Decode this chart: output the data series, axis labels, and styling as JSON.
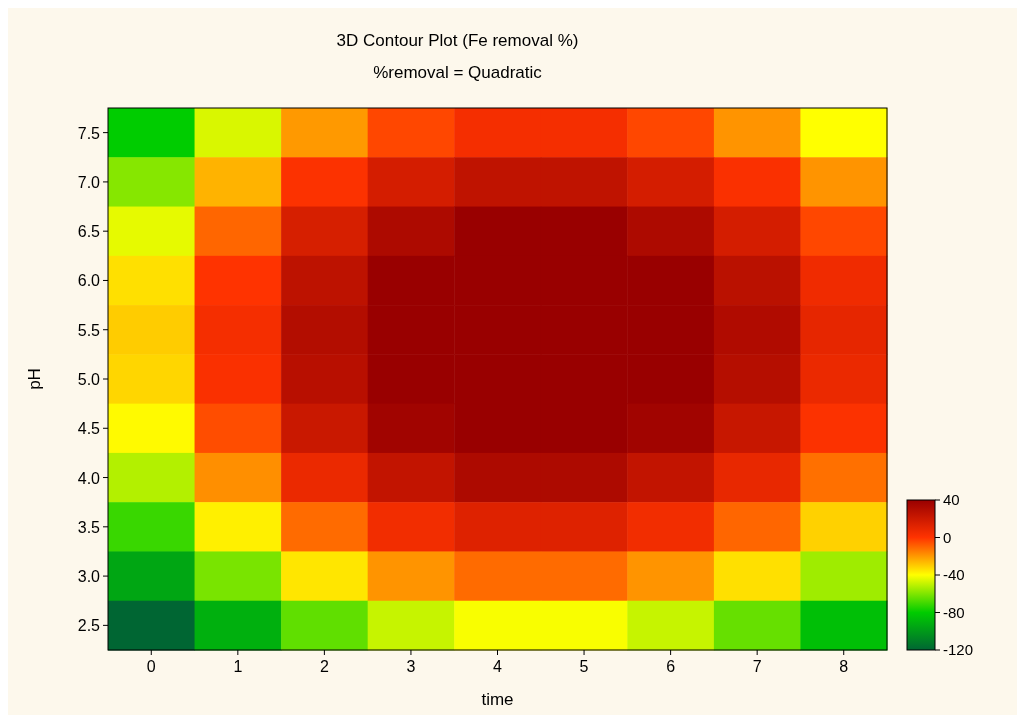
{
  "chart_data": {
    "type": "heatmap",
    "title": "3D Contour Plot (Fe removal %)",
    "subtitle": "%removal = Quadratic",
    "xlabel": "time",
    "ylabel": "pH",
    "categories": [
      "0",
      "1",
      "2",
      "3",
      "4",
      "5",
      "6",
      "7",
      "8"
    ],
    "y_categories": [
      "7.5",
      "7.0",
      "6.5",
      "6.0",
      "5.5",
      "5.0",
      "4.5",
      "4.0",
      "3.5",
      "3.0",
      "2.5"
    ],
    "cells": [
      [
        -80,
        -46,
        -20,
        -4,
        4,
        4,
        -4,
        -19,
        -40
      ],
      [
        -59,
        -25,
        1,
        17,
        25,
        25,
        17,
        2,
        -19
      ],
      [
        -44,
        -10,
        16,
        32,
        40,
        40,
        32,
        17,
        -4
      ],
      [
        -34,
        0,
        26,
        40,
        40,
        40,
        40,
        27,
        6
      ],
      [
        -30,
        4,
        30,
        40,
        40,
        40,
        40,
        31,
        10
      ],
      [
        -32,
        2,
        28,
        40,
        40,
        40,
        40,
        29,
        8
      ],
      [
        -39,
        -5,
        21,
        37,
        40,
        40,
        37,
        22,
        1
      ],
      [
        -52,
        -18,
        8,
        24,
        32,
        32,
        24,
        9,
        -12
      ],
      [
        -71,
        -37,
        -11,
        5,
        13,
        13,
        5,
        -10,
        -31
      ],
      [
        -95,
        -61,
        -35,
        -19,
        -11,
        -11,
        -19,
        -34,
        -55
      ],
      [
        -120,
        -91,
        -65,
        -49,
        -41,
        -41,
        -49,
        -64,
        -85
      ]
    ],
    "clim": [
      -120,
      40
    ],
    "cticks": [
      40,
      0,
      -40,
      -80,
      -120
    ],
    "colors": [
      "#990000",
      "#ff3300",
      "#ffff00",
      "#00cc00",
      "#006633"
    ]
  }
}
